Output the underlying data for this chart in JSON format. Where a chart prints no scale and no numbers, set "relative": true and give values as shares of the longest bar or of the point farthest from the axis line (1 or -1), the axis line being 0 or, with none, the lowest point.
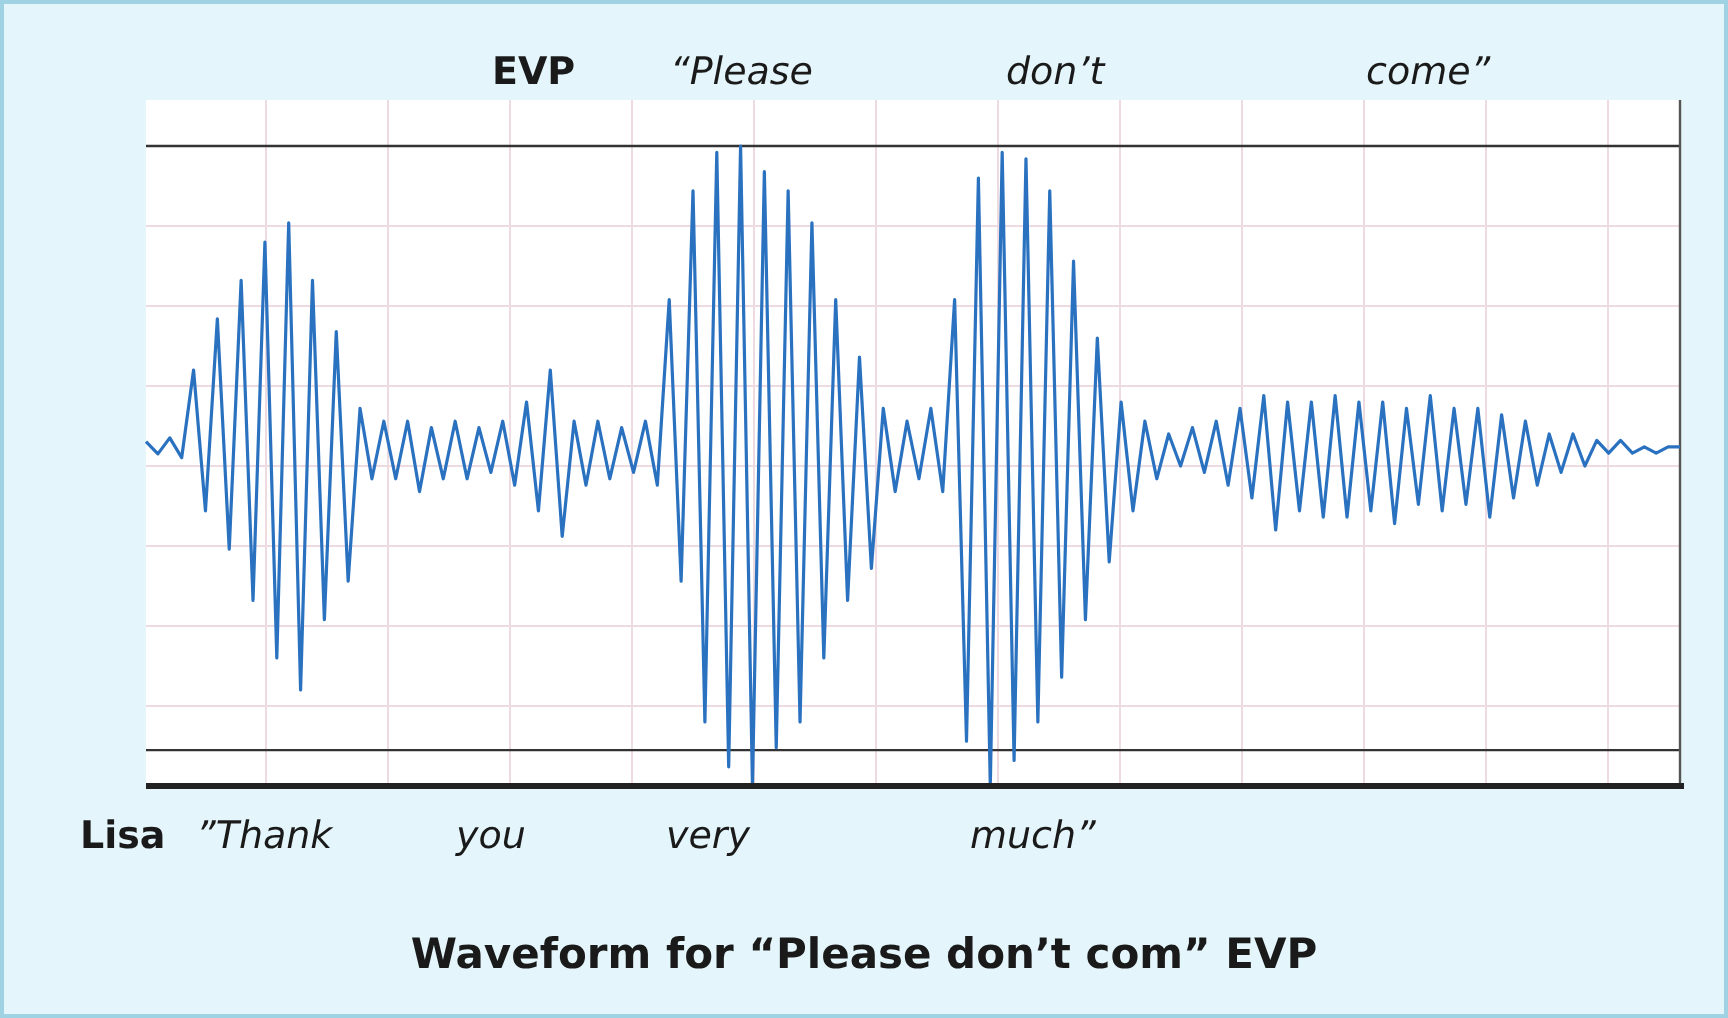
{
  "chart_data": {
    "type": "line",
    "relative": true,
    "ref_lines": [
      {
        "axis": "y",
        "value": 1,
        "color": "#333333"
      },
      {
        "axis": "y",
        "value": 0.056,
        "color": "#333333"
      }
    ],
    "grid": true,
    "title": "Waveform for “Please don’t com” EVP",
    "annotations": [
      "EVP",
      "“Please",
      "don’t",
      "come”",
      "Lisa",
      "”Thank",
      "you",
      "very",
      "much”"
    ],
    "categories": [
      null,
      null,
      null,
      null,
      null,
      null,
      null,
      null,
      null,
      null,
      null,
      null,
      null,
      null,
      null,
      null,
      null,
      null,
      null,
      null,
      null,
      null,
      null,
      null,
      null,
      null,
      null,
      null,
      null,
      null,
      null,
      null,
      null,
      null,
      null,
      null,
      null,
      null,
      null,
      null,
      null,
      null,
      null,
      null,
      null,
      null,
      null,
      null,
      null,
      null,
      null,
      null,
      null,
      null,
      null,
      null,
      null,
      null,
      null,
      null,
      null,
      null,
      null,
      null,
      null,
      null,
      null,
      null,
      null,
      null,
      null,
      null,
      null,
      null,
      null,
      null,
      null,
      null,
      null,
      null,
      null,
      null,
      null,
      null,
      null,
      null,
      null,
      null,
      null,
      null,
      null,
      null,
      null,
      null,
      null,
      null,
      null,
      null,
      null,
      null,
      null,
      null,
      null,
      null,
      null,
      null,
      null,
      null,
      null,
      null,
      null,
      null,
      null,
      null,
      null,
      null,
      null,
      null,
      null,
      null,
      null,
      null,
      null,
      null,
      null,
      null,
      null,
      null,
      null,
      null
    ],
    "series": [
      {
        "color": "#2a72c0",
        "values": [
          0.538,
          0.519,
          0.544,
          0.513,
          0.65,
          0.43,
          0.73,
          0.37,
          0.79,
          0.29,
          0.85,
          0.2,
          0.88,
          0.15,
          0.79,
          0.26,
          0.71,
          0.32,
          0.59,
          0.48,
          0.57,
          0.48,
          0.57,
          0.46,
          0.56,
          0.48,
          0.57,
          0.48,
          0.56,
          0.49,
          0.57,
          0.47,
          0.6,
          0.43,
          0.65,
          0.39,
          0.57,
          0.47,
          0.57,
          0.48,
          0.56,
          0.49,
          0.57,
          0.47,
          0.76,
          0.32,
          0.93,
          0.1,
          0.99,
          0.03,
          1,
          0,
          0.96,
          0.06,
          0.93,
          0.1,
          0.88,
          0.2,
          0.76,
          0.29,
          0.67,
          0.34,
          0.59,
          0.46,
          0.57,
          0.48,
          0.59,
          0.46,
          0.76,
          0.07,
          0.95,
          0,
          0.99,
          0.04,
          0.98,
          0.1,
          0.93,
          0.17,
          0.82,
          0.26,
          0.7,
          0.35,
          0.6,
          0.43,
          0.57,
          0.48,
          0.55,
          0.5,
          0.56,
          0.49,
          0.57,
          0.47,
          0.59,
          0.45,
          0.61,
          0.4,
          0.6,
          0.43,
          0.6,
          0.42,
          0.61,
          0.42,
          0.6,
          0.43,
          0.6,
          0.41,
          0.59,
          0.44,
          0.61,
          0.43,
          0.59,
          0.44,
          0.59,
          0.42,
          0.58,
          0.45,
          0.57,
          0.47,
          0.55,
          0.49,
          0.55,
          0.5,
          0.54,
          0.52,
          0.54,
          0.52,
          0.53,
          0.52,
          0.53,
          0.53
        ]
      }
    ]
  }
}
